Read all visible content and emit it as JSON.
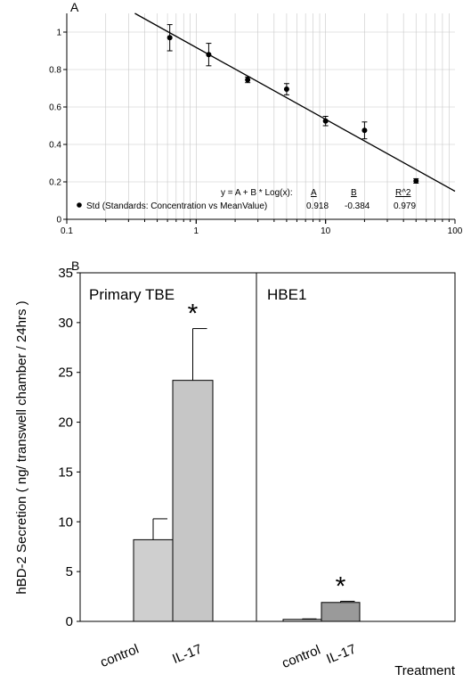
{
  "chart_data": [
    {
      "type": "scatter",
      "panel_label": "A",
      "x_scale": "log",
      "xlim": [
        0.1,
        100
      ],
      "ylim": [
        0,
        1.1
      ],
      "x_ticks": [
        {
          "v": 0.1,
          "label": "0.1"
        },
        {
          "v": 1,
          "label": "1"
        },
        {
          "v": 10,
          "label": "10"
        },
        {
          "v": 100,
          "label": "100"
        }
      ],
      "y_ticks": [
        {
          "v": 0,
          "label": "0"
        },
        {
          "v": 0.2,
          "label": "0.2"
        },
        {
          "v": 0.4,
          "label": "0.4"
        },
        {
          "v": 0.6,
          "label": "0.6"
        },
        {
          "v": 0.8,
          "label": "0.8"
        },
        {
          "v": 1,
          "label": "1"
        }
      ],
      "grid": true,
      "points": [
        {
          "x": 0.625,
          "y": 0.97,
          "err": 0.07
        },
        {
          "x": 1.25,
          "y": 0.88,
          "err": 0.06
        },
        {
          "x": 2.5,
          "y": 0.745,
          "err": 0.015
        },
        {
          "x": 5,
          "y": 0.695,
          "err": 0.03
        },
        {
          "x": 10,
          "y": 0.525,
          "err": 0.025
        },
        {
          "x": 20,
          "y": 0.475,
          "err": 0.045
        },
        {
          "x": 50,
          "y": 0.205,
          "err": 0.012
        }
      ],
      "fit": {
        "A": 0.918,
        "B": -0.384
      },
      "legend": {
        "label": "Std (Standards: Concentration vs MeanValue)",
        "equation": "y = A + B * Log(x):",
        "col_headers": [
          "A",
          "B",
          "R^2"
        ],
        "col_values": [
          "0.918",
          "-0.384",
          "0.979"
        ]
      }
    },
    {
      "type": "bar",
      "panel_label": "B",
      "ylabel": "hBD-2 Secretion ( ng/ transwell chamber / 24hrs )",
      "xlabel": "Treatment",
      "ylim": [
        0,
        35
      ],
      "y_ticks": [
        0,
        5,
        10,
        15,
        20,
        25,
        30,
        35
      ],
      "panels": [
        {
          "title": "Primary TBE",
          "categories": [
            "control",
            "IL-17"
          ],
          "values": [
            8.2,
            24.2
          ],
          "errors": [
            2.1,
            5.2
          ],
          "colors": [
            "#cfcfcf",
            "#c6c6c6"
          ],
          "significance": [
            "",
            "*"
          ]
        },
        {
          "title": "HBE1",
          "categories": [
            "control",
            "IL-17"
          ],
          "values": [
            0.2,
            1.9
          ],
          "errors": [
            0.05,
            0.12
          ],
          "colors": [
            "#d8d8d8",
            "#9a9a9a"
          ],
          "significance": [
            "",
            "*"
          ]
        }
      ]
    }
  ]
}
